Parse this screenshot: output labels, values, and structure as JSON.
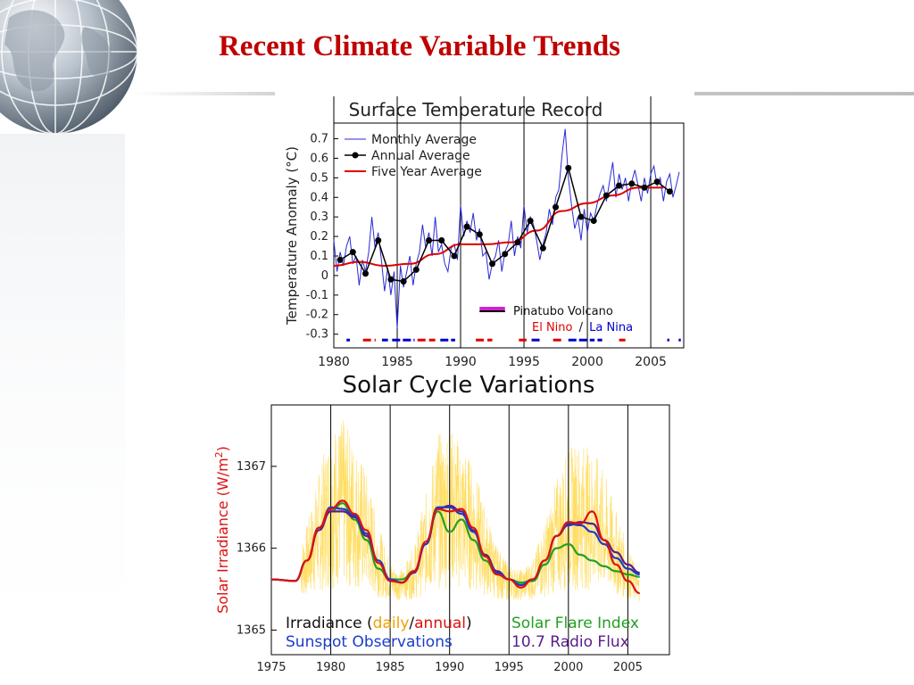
{
  "slide": {
    "title": "Recent Climate Variable Trends",
    "colors": {
      "title": "#c00000",
      "rule": "#c8c8c8"
    },
    "decoration": "globe-icon"
  },
  "chart_data": [
    {
      "type": "line",
      "title": "Surface Temperature Record",
      "xlabel": "",
      "ylabel": "Temperature Anomaly (°C)",
      "xlim": [
        1980,
        2007.6
      ],
      "ylim": [
        -0.37,
        0.78
      ],
      "x_ticks": [
        1980,
        1985,
        1990,
        1995,
        2000,
        2005
      ],
      "y_ticks": [
        -0.3,
        -0.2,
        -0.1,
        0,
        0.1,
        0.2,
        0.3,
        0.4,
        0.5,
        0.6,
        0.7
      ],
      "grid": "vertical lines at 1980, 1985, 1990, 1995, 2000, 2005",
      "legend": {
        "placement": "top-left",
        "entries": [
          "Monthly Average",
          "Annual Average",
          "Five Year Average"
        ]
      },
      "series": [
        {
          "name": "Annual Average",
          "color": "#000000",
          "x": [
            1980.5,
            1981.5,
            1982.5,
            1983.5,
            1984.5,
            1985.5,
            1986.5,
            1987.5,
            1988.5,
            1989.5,
            1990.5,
            1991.5,
            1992.5,
            1993.5,
            1994.5,
            1995.5,
            1996.5,
            1997.5,
            1998.5,
            1999.5,
            2000.5,
            2001.5,
            2002.5,
            2003.5,
            2004.5,
            2005.5,
            2006.5
          ],
          "y": [
            0.08,
            0.12,
            0.01,
            0.18,
            -0.02,
            -0.03,
            0.03,
            0.18,
            0.18,
            0.1,
            0.25,
            0.21,
            0.06,
            0.11,
            0.17,
            0.28,
            0.14,
            0.35,
            0.55,
            0.3,
            0.28,
            0.41,
            0.46,
            0.47,
            0.45,
            0.48,
            0.43
          ]
        },
        {
          "name": "Five Year Average",
          "color": "#e00000",
          "x": [
            1980,
            1982,
            1984,
            1986,
            1988,
            1990,
            1992,
            1994,
            1996,
            1998,
            2000,
            2002,
            2004,
            2006
          ],
          "y": [
            0.05,
            0.07,
            0.05,
            0.06,
            0.11,
            0.16,
            0.16,
            0.17,
            0.23,
            0.33,
            0.37,
            0.41,
            0.45,
            0.45
          ]
        },
        {
          "name": "Monthly Average",
          "color": "#2a2ad6",
          "x": [
            1980.0,
            1980.25,
            1980.5,
            1980.75,
            1981.0,
            1981.25,
            1981.5,
            1981.75,
            1982.0,
            1982.25,
            1982.5,
            1982.75,
            1983.0,
            1983.25,
            1983.5,
            1983.75,
            1984.0,
            1984.25,
            1984.5,
            1984.75,
            1985.0,
            1985.25,
            1985.5,
            1985.75,
            1986.0,
            1986.25,
            1986.5,
            1986.75,
            1987.0,
            1987.25,
            1987.5,
            1987.75,
            1988.0,
            1988.25,
            1988.5,
            1988.75,
            1989.0,
            1989.25,
            1989.5,
            1989.75,
            1990.0,
            1990.25,
            1990.5,
            1990.75,
            1991.0,
            1991.25,
            1991.5,
            1991.75,
            1992.0,
            1992.25,
            1992.5,
            1992.75,
            1993.0,
            1993.25,
            1993.5,
            1993.75,
            1994.0,
            1994.25,
            1994.5,
            1994.75,
            1995.0,
            1995.25,
            1995.5,
            1995.75,
            1996.0,
            1996.25,
            1996.5,
            1996.75,
            1997.0,
            1997.25,
            1997.5,
            1997.75,
            1998.0,
            1998.25,
            1998.5,
            1998.75,
            1999.0,
            1999.25,
            1999.5,
            1999.75,
            2000.0,
            2000.25,
            2000.5,
            2000.75,
            2001.0,
            2001.25,
            2001.5,
            2001.75,
            2002.0,
            2002.25,
            2002.5,
            2002.75,
            2003.0,
            2003.25,
            2003.5,
            2003.75,
            2004.0,
            2004.25,
            2004.5,
            2004.75,
            2005.0,
            2005.25,
            2005.5,
            2005.75,
            2006.0,
            2006.25,
            2006.5,
            2006.75,
            2007.0,
            2007.25
          ],
          "y": [
            0.18,
            0.02,
            0.12,
            0.05,
            0.15,
            0.2,
            0.06,
            0.1,
            -0.05,
            0.08,
            0.02,
            0.12,
            0.3,
            0.14,
            0.22,
            0.08,
            -0.08,
            0.04,
            -0.1,
            0.02,
            -0.27,
            0.05,
            -0.06,
            0.02,
            0.1,
            -0.05,
            0.06,
            0.12,
            0.26,
            0.14,
            0.22,
            0.1,
            0.3,
            0.12,
            0.16,
            0.06,
            0.02,
            0.14,
            0.16,
            0.08,
            0.36,
            0.2,
            0.28,
            0.22,
            0.32,
            0.18,
            0.24,
            0.1,
            0.12,
            -0.02,
            0.06,
            0.1,
            0.18,
            0.02,
            0.12,
            0.16,
            0.28,
            0.1,
            0.2,
            0.14,
            0.36,
            0.22,
            0.3,
            0.26,
            0.18,
            0.08,
            0.16,
            0.22,
            0.34,
            0.26,
            0.4,
            0.44,
            0.62,
            0.75,
            0.5,
            0.36,
            0.24,
            0.3,
            0.18,
            0.34,
            0.22,
            0.32,
            0.28,
            0.36,
            0.42,
            0.46,
            0.38,
            0.48,
            0.58,
            0.4,
            0.52,
            0.44,
            0.5,
            0.38,
            0.48,
            0.54,
            0.46,
            0.38,
            0.5,
            0.42,
            0.52,
            0.56,
            0.46,
            0.5,
            0.38,
            0.48,
            0.52,
            0.4,
            0.46,
            0.53
          ]
        }
      ],
      "annotations": {
        "pinatubo": {
          "label": "Pinatubo Volcano",
          "color": "#d020d0",
          "x_range": [
            1991.5,
            1993.5
          ]
        },
        "enso": {
          "el_nino_label": "El Nino",
          "separator": "/",
          "la_nina_label": "La Nina",
          "el_nino_color": "#e00000",
          "la_nina_color": "#0000cc",
          "y": -0.33,
          "el_nino_periods": [
            [
              1982.3,
              1983.3
            ],
            [
              1986.6,
              1988.0
            ],
            [
              1991.2,
              1992.5
            ],
            [
              1994.6,
              1995.2
            ],
            [
              1997.3,
              1998.2
            ],
            [
              2002.5,
              2003.0
            ]
          ],
          "la_nina_periods": [
            [
              1981.0,
              1981.2
            ],
            [
              1983.8,
              1984.2
            ],
            [
              1984.6,
              1986.3
            ],
            [
              1988.4,
              1989.5
            ],
            [
              1995.6,
              1996.2
            ],
            [
              1998.5,
              2000.5
            ],
            [
              2000.8,
              2001.1
            ],
            [
              2006.3,
              2006.4
            ],
            [
              2007.2,
              2007.3
            ]
          ]
        }
      }
    },
    {
      "type": "line",
      "title": "Solar Cycle Variations",
      "xlabel": "",
      "ylabel": "Solar Irradiance (W/m",
      "ylabel_sup": "2",
      "ylabel_close": ")",
      "xlim": [
        1975,
        2008.5
      ],
      "ylim": [
        1364.7,
        1367.75
      ],
      "x_ticks": [
        1975,
        1980,
        1985,
        1990,
        1995,
        2000,
        2005
      ],
      "y_ticks": [
        1365,
        1366,
        1367
      ],
      "grid": "vertical lines at 1980, 1985, 1990, 1995, 2000, 2005",
      "legend": {
        "placement": "bottom",
        "line1_prefix": "Irradiance (",
        "daily": "daily",
        "slash": "/",
        "annual": "annual",
        "line1_suffix": ")",
        "sunspot": "Sunspot Observations",
        "flare": "Solar Flare Index",
        "radio": "10.7 Radio Flux"
      },
      "series": [
        {
          "name": "Irradiance daily",
          "color": "#ffd84a",
          "x": [
            1975,
            1977,
            1978,
            1979,
            1980,
            1981,
            1982,
            1983,
            1984,
            1985,
            1986,
            1987,
            1988,
            1989,
            1990,
            1991,
            1992,
            1993,
            1994,
            1995,
            1996,
            1997,
            1998,
            1999,
            2000,
            2001,
            2002,
            2003,
            2004,
            2005,
            2006
          ],
          "y": [
            1365.62,
            1365.62,
            1365.85,
            1366.2,
            1366.5,
            1366.55,
            1366.4,
            1366.2,
            1365.85,
            1365.6,
            1365.55,
            1365.7,
            1366.05,
            1366.45,
            1366.5,
            1366.4,
            1366.25,
            1365.95,
            1365.7,
            1365.58,
            1365.55,
            1365.62,
            1365.85,
            1366.15,
            1366.35,
            1366.4,
            1366.35,
            1366.2,
            1365.95,
            1365.7,
            1365.5
          ]
        },
        {
          "name": "annual",
          "color": "#dd1111",
          "x": [
            1975,
            1977,
            1978,
            1979,
            1980,
            1981,
            1982,
            1983,
            1984,
            1985,
            1986,
            1987,
            1988,
            1989,
            1990,
            1991,
            1992,
            1993,
            1994,
            1995,
            1996,
            1997,
            1998,
            1999,
            2000,
            2001,
            2002,
            2003,
            2004,
            2005,
            2006
          ],
          "y": [
            1365.62,
            1365.6,
            1365.85,
            1366.25,
            1366.48,
            1366.58,
            1366.42,
            1366.22,
            1365.82,
            1365.6,
            1365.58,
            1365.72,
            1366.08,
            1366.48,
            1366.45,
            1366.48,
            1366.25,
            1365.9,
            1365.68,
            1365.62,
            1365.52,
            1365.62,
            1365.85,
            1366.15,
            1366.32,
            1366.3,
            1366.45,
            1366.1,
            1365.8,
            1365.6,
            1365.45
          ]
        },
        {
          "name": "Sunspot Observations",
          "color": "#1a3ccc",
          "x": [
            1975,
            1977,
            1978,
            1979,
            1980,
            1981,
            1982,
            1983,
            1984,
            1985,
            1986,
            1987,
            1988,
            1989,
            1990,
            1991,
            1992,
            1993,
            1994,
            1995,
            1996,
            1997,
            1998,
            1999,
            2000,
            2001,
            2002,
            2003,
            2004,
            2005,
            2006
          ],
          "y": [
            1365.62,
            1365.6,
            1365.85,
            1366.25,
            1366.5,
            1366.48,
            1366.4,
            1366.18,
            1365.85,
            1365.62,
            1365.58,
            1365.72,
            1366.05,
            1366.5,
            1366.5,
            1366.42,
            1366.2,
            1365.9,
            1365.7,
            1365.62,
            1365.55,
            1365.62,
            1365.85,
            1366.15,
            1366.3,
            1366.28,
            1366.2,
            1366.05,
            1365.88,
            1365.75,
            1365.68
          ]
        },
        {
          "name": "Solar Flare Index",
          "color": "#22a022",
          "x": [
            1975,
            1977,
            1978,
            1979,
            1980,
            1981,
            1982,
            1983,
            1984,
            1985,
            1986,
            1987,
            1988,
            1989,
            1990,
            1991,
            1992,
            1993,
            1994,
            1995,
            1996,
            1997,
            1998,
            1999,
            2000,
            2001,
            2002,
            2003,
            2004,
            2005,
            2006
          ],
          "y": [
            1365.62,
            1365.6,
            1365.85,
            1366.25,
            1366.45,
            1366.55,
            1366.35,
            1366.1,
            1365.75,
            1365.62,
            1365.62,
            1365.72,
            1366.05,
            1366.45,
            1366.2,
            1366.35,
            1366.1,
            1365.85,
            1365.68,
            1365.62,
            1365.58,
            1365.6,
            1365.8,
            1366.0,
            1366.05,
            1365.92,
            1365.85,
            1365.78,
            1365.72,
            1365.68,
            1365.65
          ]
        },
        {
          "name": "10.7 Radio Flux",
          "color": "#5a1c8c",
          "x": [
            1975,
            1977,
            1978,
            1979,
            1980,
            1981,
            1982,
            1983,
            1984,
            1985,
            1986,
            1987,
            1988,
            1989,
            1990,
            1991,
            1992,
            1993,
            1994,
            1995,
            1996,
            1997,
            1998,
            1999,
            2000,
            2001,
            2002,
            2003,
            2004,
            2005,
            2006
          ],
          "y": [
            1365.62,
            1365.6,
            1365.85,
            1366.22,
            1366.45,
            1366.45,
            1366.38,
            1366.15,
            1365.85,
            1365.62,
            1365.58,
            1365.7,
            1366.05,
            1366.48,
            1366.52,
            1366.45,
            1366.22,
            1365.92,
            1365.72,
            1365.62,
            1365.55,
            1365.62,
            1365.85,
            1366.15,
            1366.28,
            1366.32,
            1366.3,
            1366.1,
            1365.95,
            1365.8,
            1365.7
          ]
        }
      ]
    }
  ]
}
